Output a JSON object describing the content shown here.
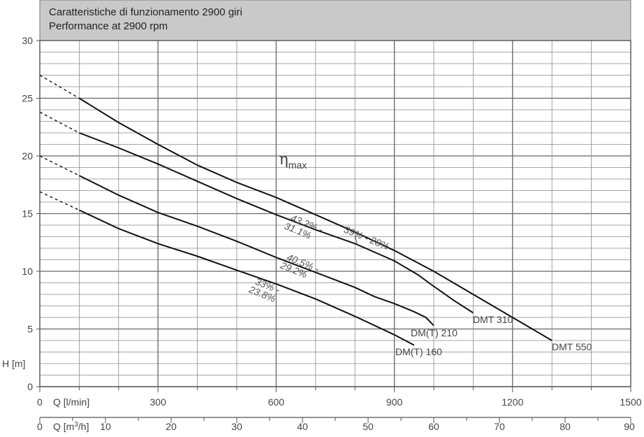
{
  "chart_data": {
    "type": "line",
    "title_lines": [
      "Caratteristiche di funzionamento 2900 giri",
      "Performance at 2900 rpm"
    ],
    "y_axis": {
      "label": "H [m]",
      "min": 0,
      "max": 30,
      "ticks": [
        0,
        5,
        10,
        15,
        20,
        25,
        30
      ]
    },
    "x_axis_lpm": {
      "label": "Q [l/min]",
      "min": 0,
      "max": 1500,
      "ticks": [
        0,
        300,
        600,
        900,
        1200,
        1500
      ]
    },
    "x_axis_m3h": {
      "label_prefix": "Q [m",
      "label_sup": "3",
      "label_suffix": "/h]",
      "min": 0,
      "max": 90,
      "ticks": [
        0,
        10,
        20,
        30,
        40,
        50,
        60,
        70,
        80,
        90
      ]
    },
    "grid": true,
    "eta_label": {
      "symbol": "η",
      "sub": "max",
      "x": 650,
      "y": 19.4
    },
    "series": [
      {
        "name": "DMT 550",
        "dashed": [
          [
            0,
            27
          ],
          [
            100,
            25
          ]
        ],
        "points": [
          [
            100,
            25
          ],
          [
            200,
            22.9
          ],
          [
            300,
            21.0
          ],
          [
            400,
            19.2
          ],
          [
            500,
            17.7
          ],
          [
            600,
            16.4
          ],
          [
            700,
            14.9
          ],
          [
            800,
            13.4
          ],
          [
            900,
            11.8
          ],
          [
            1000,
            10.0
          ],
          [
            1100,
            8.0
          ],
          [
            1200,
            6.0
          ],
          [
            1300,
            4.0
          ]
        ],
        "end_label": "DMT 550"
      },
      {
        "name": "DMT 310",
        "dashed": [
          [
            0,
            23.8
          ],
          [
            100,
            22
          ]
        ],
        "points": [
          [
            100,
            22
          ],
          [
            200,
            20.7
          ],
          [
            300,
            19.3
          ],
          [
            400,
            17.8
          ],
          [
            500,
            16.3
          ],
          [
            600,
            14.9
          ],
          [
            700,
            13.6
          ],
          [
            800,
            12.4
          ],
          [
            900,
            10.9
          ],
          [
            960,
            9.7
          ],
          [
            1000,
            8.7
          ],
          [
            1050,
            7.5
          ],
          [
            1100,
            6.4
          ]
        ],
        "end_label": "DMT 310"
      },
      {
        "name": "DM(T) 210",
        "dashed": [
          [
            0,
            20
          ],
          [
            100,
            18.3
          ]
        ],
        "points": [
          [
            100,
            18.3
          ],
          [
            200,
            16.6
          ],
          [
            300,
            15.1
          ],
          [
            400,
            13.9
          ],
          [
            500,
            12.6
          ],
          [
            600,
            11.2
          ],
          [
            700,
            9.9
          ],
          [
            800,
            8.6
          ],
          [
            850,
            7.8
          ],
          [
            900,
            7.2
          ],
          [
            950,
            6.5
          ],
          [
            980,
            6.0
          ],
          [
            1000,
            5.3
          ]
        ],
        "end_label": "DM(T) 210"
      },
      {
        "name": "DM(T) 160",
        "dashed": [
          [
            0,
            16.9
          ],
          [
            100,
            15.3
          ]
        ],
        "points": [
          [
            100,
            15.3
          ],
          [
            200,
            13.7
          ],
          [
            300,
            12.4
          ],
          [
            400,
            11.3
          ],
          [
            500,
            10.1
          ],
          [
            600,
            8.9
          ],
          [
            700,
            7.6
          ],
          [
            800,
            6.1
          ],
          [
            900,
            4.5
          ],
          [
            950,
            3.6
          ]
        ],
        "end_label": "DM(T) 160"
      }
    ],
    "efficiency_labels": [
      {
        "lines": [
          "43.2% -",
          "31.1%"
        ],
        "x": 635,
        "y": 14.4
      },
      {
        "lines": [
          "39% - 28%"
        ],
        "x": 770,
        "y": 13.4
      },
      {
        "lines": [
          "40.5% -",
          "29.2%"
        ],
        "x": 625,
        "y": 11.0
      },
      {
        "lines": [
          "33% -",
          "23.8%"
        ],
        "x": 545,
        "y": 8.9
      }
    ]
  }
}
